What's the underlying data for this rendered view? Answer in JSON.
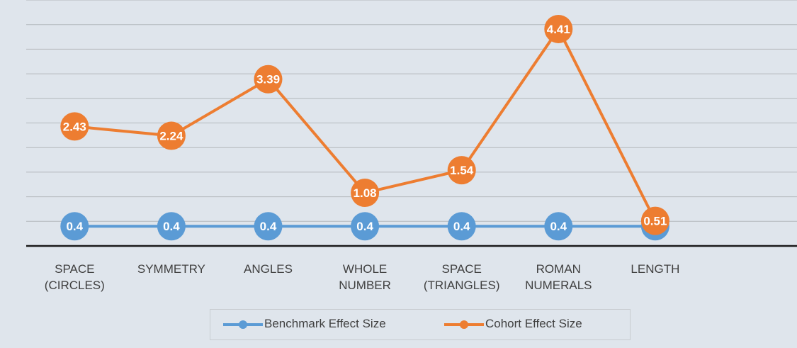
{
  "chart_data": {
    "type": "line",
    "categories": [
      "SPACE (CIRCLES)",
      "SYMMETRY",
      "ANGLES",
      "WHOLE NUMBER",
      "SPACE (TRIANGLES)",
      "ROMAN NUMERALS",
      "LENGTH"
    ],
    "series": [
      {
        "name": "Benchmark Effect Size",
        "color": "#5b9bd5",
        "values": [
          0.4,
          0.4,
          0.4,
          0.4,
          0.4,
          0.4,
          0.4
        ]
      },
      {
        "name": "Cohort Effect Size",
        "color": "#ed7d31",
        "values": [
          2.43,
          2.24,
          3.39,
          1.08,
          1.54,
          4.41,
          0.51
        ]
      }
    ],
    "ylim": [
      0,
      5
    ],
    "yticks": [
      0,
      0.5,
      1,
      1.5,
      2,
      2.5,
      3,
      3.5,
      4,
      4.5,
      5
    ],
    "grid": true,
    "legend": "bottom"
  }
}
